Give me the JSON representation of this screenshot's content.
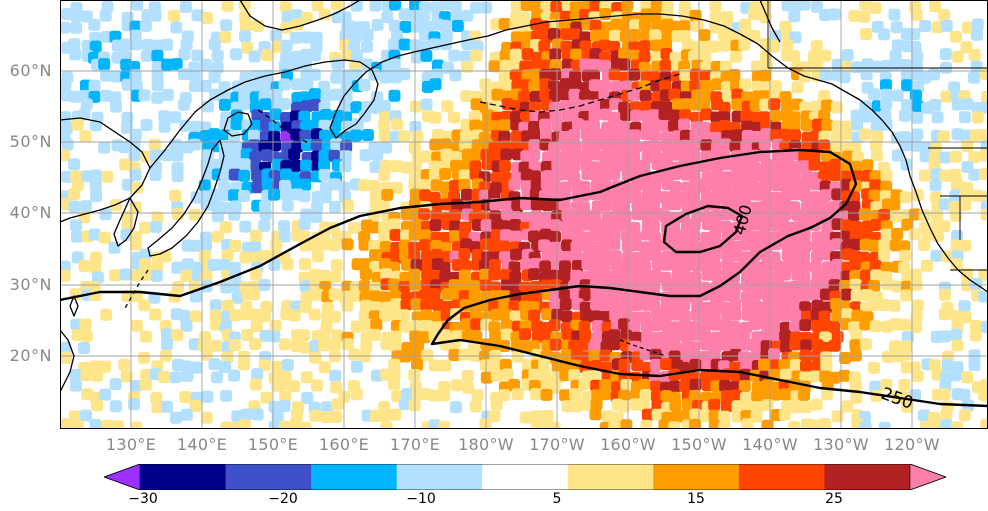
{
  "lat_labels": [
    "60°N",
    "50°N",
    "40°N",
    "30°N",
    "20°N"
  ],
  "lon_labels": [
    "130°E",
    "140°E",
    "150°E",
    "160°E",
    "170°E",
    "180°W",
    "170°W",
    "160°W",
    "150°W",
    "140°W",
    "130°W",
    "120°W"
  ],
  "contour_labels": [
    "400",
    "250"
  ],
  "colorbar": {
    "colors": [
      "#9b30ff",
      "#00008b",
      "#3f51c8",
      "#00b4ff",
      "#b3e0ff",
      "#ffffff",
      "#ffe58a",
      "#ff9d00",
      "#ff4500",
      "#b22222",
      "#ff7fab"
    ],
    "tick_labels": [
      "−30",
      "−20",
      "−10",
      "5",
      "15",
      "25"
    ]
  },
  "colors": {
    "coastline": "#000000",
    "grid": "#a0a0a0",
    "contour": "#000000"
  }
}
